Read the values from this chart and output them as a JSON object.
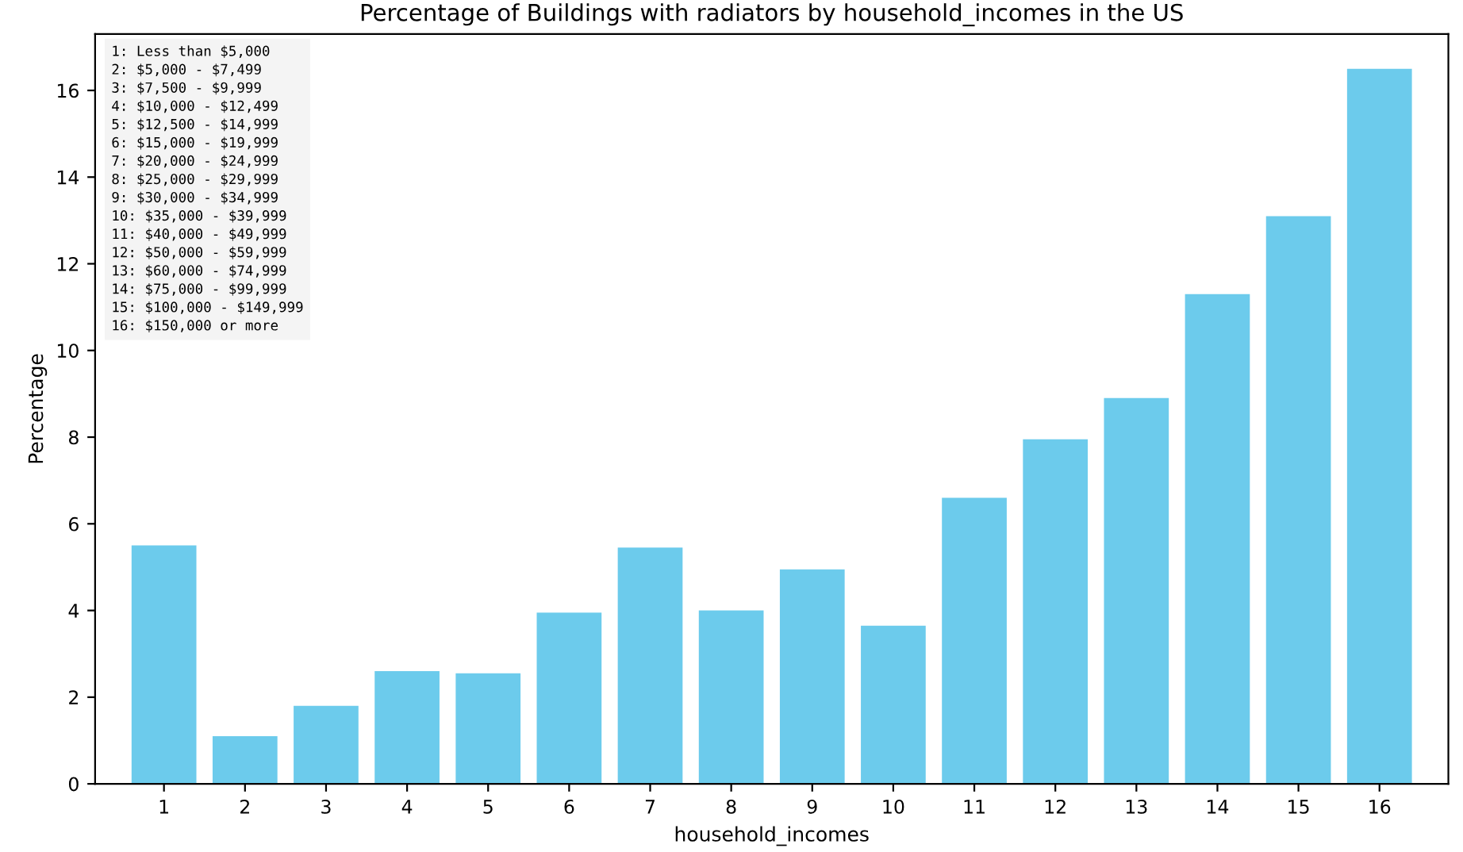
{
  "chart_data": {
    "type": "bar",
    "title": "Percentage of Buildings with radiators by household_incomes in the US",
    "xlabel": "household_incomes",
    "ylabel": "Percentage",
    "categories": [
      "1",
      "2",
      "3",
      "4",
      "5",
      "6",
      "7",
      "8",
      "9",
      "10",
      "11",
      "12",
      "13",
      "14",
      "15",
      "16"
    ],
    "values": [
      5.5,
      1.1,
      1.8,
      2.6,
      2.55,
      3.95,
      5.45,
      4.0,
      4.95,
      3.65,
      6.6,
      7.95,
      8.9,
      11.3,
      13.1,
      16.5
    ],
    "color": "#6ccbec",
    "ylim": [
      0,
      17.3
    ],
    "yticks": [
      0,
      2,
      4,
      6,
      8,
      10,
      12,
      14,
      16
    ],
    "grid": false,
    "legend": false,
    "annotations": [
      "1: Less than $5,000\n2: $5,000 - $7,499\n3: $7,500 - $9,999\n4: $10,000 - $12,499\n5: $12,500 - $14,999\n6: $15,000 - $19,999\n7: $20,000 - $24,999\n8: $25,000 - $29,999\n9: $30,000 - $34,999\n10: $35,000 - $39,999\n11: $40,000 - $49,999\n12: $50,000 - $59,999\n13: $60,000 - $74,999\n14: $75,000 - $99,999\n15: $100,000 - $149,999\n16: $150,000 or more"
    ]
  }
}
